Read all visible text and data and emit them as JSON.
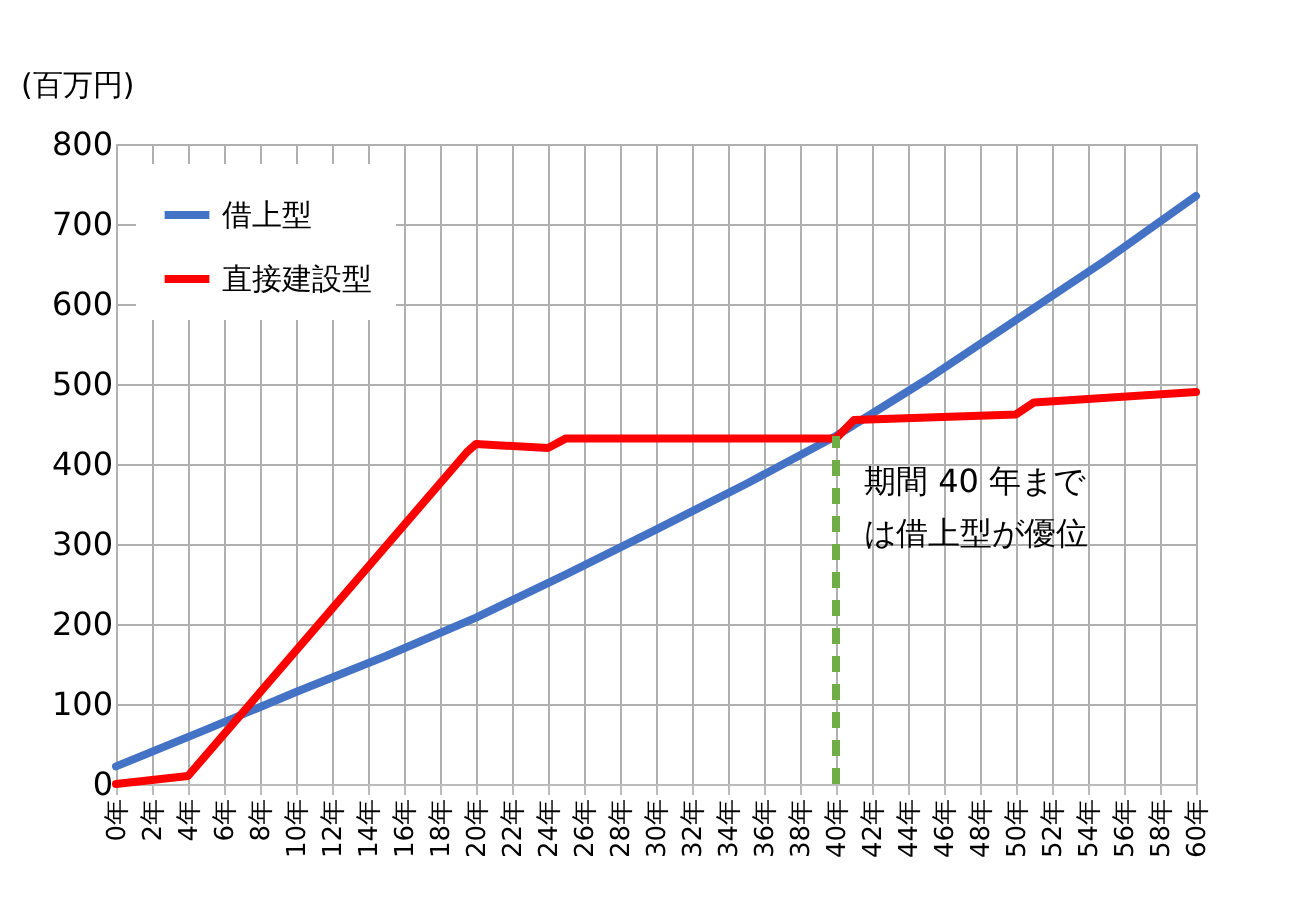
{
  "chart_data": {
    "type": "line",
    "ylabel": "(百万円)",
    "xlim": [
      0,
      60
    ],
    "xticks": [
      {
        "value": 0,
        "label": "0年"
      },
      {
        "value": 2,
        "label": "2年"
      },
      {
        "value": 4,
        "label": "4年"
      },
      {
        "value": 6,
        "label": "6年"
      },
      {
        "value": 8,
        "label": "8年"
      },
      {
        "value": 10,
        "label": "10年"
      },
      {
        "value": 12,
        "label": "12年"
      },
      {
        "value": 14,
        "label": "14年"
      },
      {
        "value": 16,
        "label": "16年"
      },
      {
        "value": 18,
        "label": "18年"
      },
      {
        "value": 20,
        "label": "20年"
      },
      {
        "value": 22,
        "label": "22年"
      },
      {
        "value": 24,
        "label": "24年"
      },
      {
        "value": 26,
        "label": "26年"
      },
      {
        "value": 28,
        "label": "28年"
      },
      {
        "value": 30,
        "label": "30年"
      },
      {
        "value": 32,
        "label": "32年"
      },
      {
        "value": 34,
        "label": "34年"
      },
      {
        "value": 36,
        "label": "36年"
      },
      {
        "value": 38,
        "label": "38年"
      },
      {
        "value": 40,
        "label": "40年"
      },
      {
        "value": 42,
        "label": "42年"
      },
      {
        "value": 44,
        "label": "44年"
      },
      {
        "value": 46,
        "label": "46年"
      },
      {
        "value": 48,
        "label": "48年"
      },
      {
        "value": 50,
        "label": "50年"
      },
      {
        "value": 52,
        "label": "52年"
      },
      {
        "value": 54,
        "label": "54年"
      },
      {
        "value": 56,
        "label": "56年"
      },
      {
        "value": 58,
        "label": "58年"
      },
      {
        "value": 60,
        "label": "60年"
      }
    ],
    "ylim": [
      0,
      800
    ],
    "yticks": [
      0,
      100,
      200,
      300,
      400,
      500,
      600,
      700,
      800
    ],
    "series": [
      {
        "name": "借上型",
        "color": "#4472c4",
        "x": [
          0,
          5,
          10,
          15,
          20,
          25,
          30,
          35,
          40,
          45,
          50,
          55,
          60
        ],
        "values": [
          22,
          68,
          115,
          160,
          208,
          262,
          318,
          375,
          435,
          505,
          580,
          655,
          735
        ]
      },
      {
        "name": "直接建設型",
        "color": "#ff0000",
        "x": [
          0,
          4,
          19.5,
          20,
          24,
          25,
          40,
          41,
          50,
          51,
          60
        ],
        "values": [
          0,
          10,
          415,
          425,
          420,
          432,
          432,
          455,
          462,
          477,
          490
        ]
      }
    ],
    "ref_lines": [
      {
        "axis": "x",
        "value": 40,
        "color": "#70ad47",
        "line_style": "dashed"
      }
    ],
    "annotations": [
      {
        "text": "期間 40 年まで",
        "x": 40,
        "y": 432
      },
      {
        "text": "は借上型が優位",
        "x": 40,
        "y": 432
      }
    ],
    "grid": true,
    "legend": "top left",
    "line_style": "solid",
    "marker": "none"
  }
}
